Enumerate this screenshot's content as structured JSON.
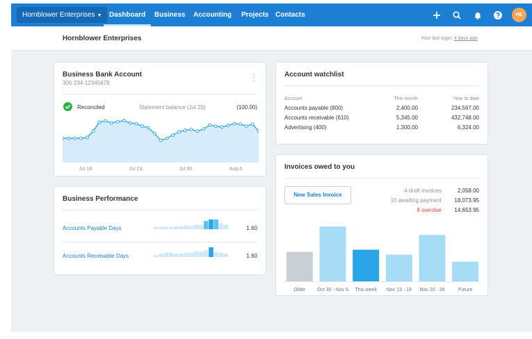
{
  "nav": {
    "org_selector": "Hornblower Enterprises",
    "items": [
      {
        "label": "Dashboard",
        "active": true
      },
      {
        "label": "Business"
      },
      {
        "label": "Accounting"
      },
      {
        "label": "Projects"
      },
      {
        "label": "Contacts"
      }
    ],
    "icons": [
      "plus-icon",
      "search-icon",
      "bell-icon",
      "help-icon"
    ],
    "avatar_initials": "HE"
  },
  "header": {
    "org_title": "Hornblower Enterprises",
    "last_login_prefix": "Your last login:",
    "last_login_value": "4 days ago"
  },
  "bank": {
    "title": "Business Bank Account",
    "account_number": "306-234-12345678",
    "status": "Reconciled",
    "statement_label": "Statement balance (Jul 20)",
    "statement_value": "(100.00)",
    "x_ticks": [
      "Jul 16",
      "Jul 23",
      "Jul 30",
      "Aug 6"
    ],
    "line_values": [
      0.6,
      0.6,
      0.6,
      0.6,
      0.62,
      0.78,
      1.0,
      1.03,
      0.98,
      1.01,
      1.04,
      0.98,
      0.96,
      0.9,
      0.86,
      0.72,
      0.55,
      0.6,
      0.68,
      0.76,
      0.8,
      0.82,
      0.78,
      0.83,
      0.93,
      0.9,
      0.88,
      0.92,
      0.96,
      0.95,
      0.9,
      0.95,
      0.78
    ]
  },
  "performance": {
    "title": "Business Performance",
    "rows": [
      {
        "label": "Accounts Payable Days",
        "value": "1.60",
        "bars": [
          0.25,
          0.25,
          0.25,
          0.25,
          0.3,
          0.3,
          0.4,
          0.35,
          0.45,
          0.45,
          0.85,
          1.0,
          1.0,
          0.6,
          0.45
        ]
      },
      {
        "label": "Accounts Receivable Days",
        "value": "1.60",
        "bars": [
          0.2,
          0.35,
          0.45,
          0.45,
          0.35,
          0.35,
          0.45,
          0.45,
          0.6,
          0.55,
          0.7,
          1.0,
          0.5,
          0.45,
          0.35
        ]
      }
    ],
    "highlight_colors": [
      "#cfe9f8",
      "#5fc1f0",
      "#2aa5e8"
    ]
  },
  "watchlist": {
    "title": "Account watchlist",
    "columns": [
      "Account",
      "This month",
      "Year to date"
    ],
    "rows": [
      {
        "account": "Accounts payable (800)",
        "month": "2,400.00",
        "ytd": "234,567.00"
      },
      {
        "account": "Accounts receivable (610)",
        "month": "5,345.00",
        "ytd": "432,748.00"
      },
      {
        "account": "Advertising (400)",
        "month": "1,300.00",
        "ytd": "6,324.00"
      }
    ]
  },
  "invoices": {
    "title": "Invoices owed to you",
    "new_button": "New Sales Invoice",
    "summary": [
      {
        "label": "4 draft invoices",
        "value": "2,058.00",
        "overdue": false
      },
      {
        "label": "10 awaiting payment",
        "value": "18,073.95",
        "overdue": false
      },
      {
        "label": "8 overdue",
        "value": "14,653.95",
        "overdue": true
      }
    ]
  },
  "chart_data": {
    "type": "bar",
    "categories": [
      "Older",
      "Oct 30 - Nov 5",
      "This week",
      "Nov 13 - 19",
      "Nov 20 - 26",
      "Future"
    ],
    "values": [
      42,
      78,
      45,
      38,
      66,
      28
    ],
    "colors": [
      "#c8d0d6",
      "#a7dcf6",
      "#2aa5e8",
      "#a7dcf6",
      "#a7dcf6",
      "#a7dcf6"
    ],
    "title": "",
    "xlabel": "",
    "ylabel": "",
    "ylim": [
      0,
      85
    ]
  }
}
